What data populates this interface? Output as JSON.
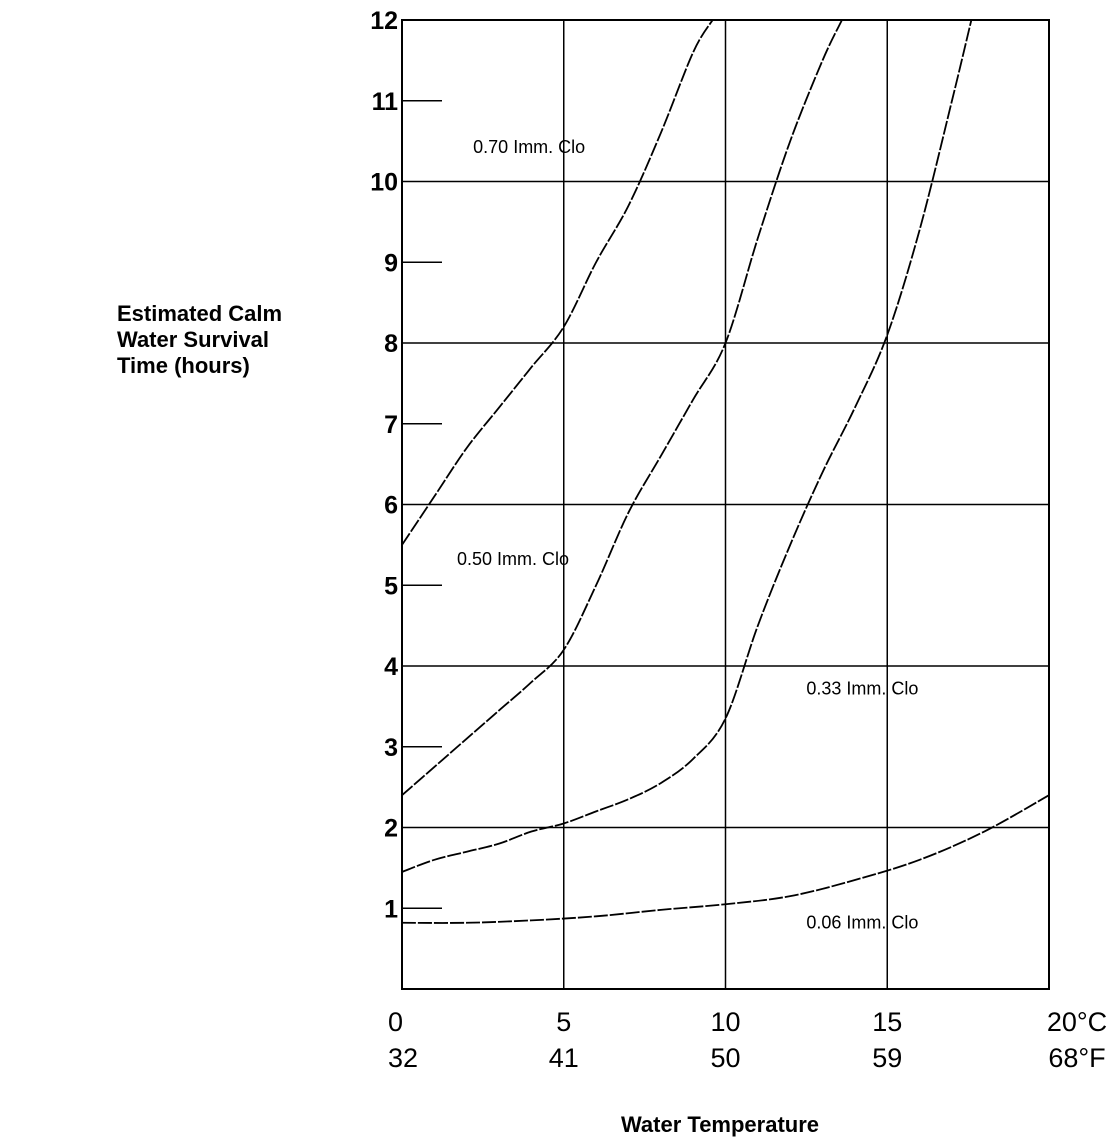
{
  "chart_data": {
    "type": "line",
    "ylabel_lines": [
      "Estimated Calm",
      "Water Survival",
      "Time (hours)"
    ],
    "xlabel": "Water Temperature",
    "x_ticks_c": [
      {
        "value": 0,
        "label": "0"
      },
      {
        "value": 5,
        "label": "5"
      },
      {
        "value": 10,
        "label": "10"
      },
      {
        "value": 15,
        "label": "15"
      },
      {
        "value": 20,
        "label": "20°C"
      }
    ],
    "x_ticks_f": [
      "32",
      "41",
      "50",
      "59",
      "68°F"
    ],
    "y_ticks": [
      "1",
      "2",
      "3",
      "4",
      "5",
      "6",
      "7",
      "8",
      "9",
      "10",
      "11",
      "12"
    ],
    "xlim": [
      0,
      20
    ],
    "ylim": [
      0,
      12
    ],
    "grid_x": [
      5,
      10,
      15
    ],
    "grid_y": [
      2,
      4,
      6,
      8,
      10
    ],
    "series": [
      {
        "name": "0.70 Imm. Clo",
        "label_at": [
          2.2,
          10.35
        ],
        "points": [
          [
            0,
            5.5
          ],
          [
            1,
            6.1
          ],
          [
            2,
            6.7
          ],
          [
            3,
            7.2
          ],
          [
            4,
            7.7
          ],
          [
            5,
            8.2
          ],
          [
            6,
            9.0
          ],
          [
            7,
            9.7
          ],
          [
            8,
            10.6
          ],
          [
            9,
            11.6
          ],
          [
            9.6,
            12
          ]
        ]
      },
      {
        "name": "0.50 Imm. Clo",
        "label_at": [
          1.7,
          5.25
        ],
        "points": [
          [
            0,
            2.4
          ],
          [
            1,
            2.75
          ],
          [
            2,
            3.1
          ],
          [
            3,
            3.45
          ],
          [
            4,
            3.8
          ],
          [
            5,
            4.2
          ],
          [
            6,
            5.0
          ],
          [
            7,
            5.9
          ],
          [
            8,
            6.6
          ],
          [
            9,
            7.3
          ],
          [
            10,
            8.0
          ],
          [
            11,
            9.3
          ],
          [
            12,
            10.5
          ],
          [
            13,
            11.5
          ],
          [
            13.6,
            12
          ]
        ]
      },
      {
        "name": "0.33 Imm. Clo",
        "label_at": [
          12.5,
          3.65
        ],
        "points": [
          [
            0,
            1.45
          ],
          [
            1,
            1.6
          ],
          [
            2,
            1.7
          ],
          [
            3,
            1.8
          ],
          [
            4,
            1.95
          ],
          [
            5,
            2.05
          ],
          [
            6,
            2.2
          ],
          [
            7,
            2.35
          ],
          [
            8,
            2.55
          ],
          [
            9,
            2.85
          ],
          [
            10,
            3.35
          ],
          [
            11,
            4.5
          ],
          [
            12,
            5.5
          ],
          [
            13,
            6.4
          ],
          [
            14,
            7.2
          ],
          [
            15,
            8.1
          ],
          [
            16,
            9.4
          ],
          [
            17,
            11.0
          ],
          [
            17.6,
            12
          ]
        ]
      },
      {
        "name": "0.06 Imm. Clo",
        "label_at": [
          12.5,
          0.75
        ],
        "points": [
          [
            0,
            0.82
          ],
          [
            2,
            0.82
          ],
          [
            4,
            0.85
          ],
          [
            6,
            0.9
          ],
          [
            8,
            0.98
          ],
          [
            10,
            1.05
          ],
          [
            12,
            1.15
          ],
          [
            14,
            1.35
          ],
          [
            16,
            1.6
          ],
          [
            18,
            1.95
          ],
          [
            20,
            2.4
          ]
        ]
      }
    ]
  }
}
